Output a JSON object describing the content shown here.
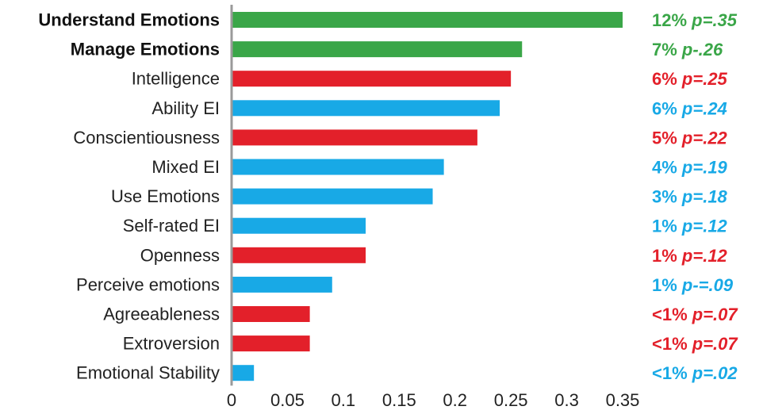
{
  "chart_data": {
    "type": "bar",
    "orientation": "horizontal",
    "title": "",
    "xlabel": "",
    "ylabel": "",
    "xlim": [
      0,
      0.35
    ],
    "grid": false,
    "x_ticks": [
      "0",
      "0.05",
      "0.1",
      "0.15",
      "0.2",
      "0.25",
      "0.3",
      "0.35"
    ],
    "colors": {
      "green": "#3aa648",
      "red": "#e3202a",
      "blue": "#18a9e6"
    },
    "categories": [
      {
        "label": "Understand Emotions",
        "value": 0.35,
        "color": "green",
        "bold": true,
        "pct": "12%",
        "p": "p=.35"
      },
      {
        "label": "Manage Emotions",
        "value": 0.26,
        "color": "green",
        "bold": true,
        "pct": "7%",
        "p": "p-.26"
      },
      {
        "label": "Intelligence",
        "value": 0.25,
        "color": "red",
        "bold": false,
        "pct": "6%",
        "p": "p=.25"
      },
      {
        "label": "Ability EI",
        "value": 0.24,
        "color": "blue",
        "bold": false,
        "pct": "6%",
        "p": "p=.24"
      },
      {
        "label": "Conscientiousness",
        "value": 0.22,
        "color": "red",
        "bold": false,
        "pct": "5%",
        "p": "p=.22"
      },
      {
        "label": "Mixed EI",
        "value": 0.19,
        "color": "blue",
        "bold": false,
        "pct": "4%",
        "p": "p=.19"
      },
      {
        "label": "Use Emotions",
        "value": 0.18,
        "color": "blue",
        "bold": false,
        "pct": "3%",
        "p": "p=.18"
      },
      {
        "label": "Self-rated EI",
        "value": 0.12,
        "color": "blue",
        "bold": false,
        "pct": "1%",
        "p": "p=.12"
      },
      {
        "label": "Openness",
        "value": 0.12,
        "color": "red",
        "bold": false,
        "pct": "1%",
        "p": "p=.12"
      },
      {
        "label": "Perceive emotions",
        "value": 0.09,
        "color": "blue",
        "bold": false,
        "pct": "1%",
        "p": "p-=.09"
      },
      {
        "label": "Agreeableness",
        "value": 0.07,
        "color": "red",
        "bold": false,
        "pct": "<1%",
        "p": "p=.07"
      },
      {
        "label": "Extroversion",
        "value": 0.07,
        "color": "red",
        "bold": false,
        "pct": "<1%",
        "p": "p=.07"
      },
      {
        "label": "Emotional Stability",
        "value": 0.02,
        "color": "blue",
        "bold": false,
        "pct": "<1%",
        "p": "p=.02"
      }
    ]
  }
}
